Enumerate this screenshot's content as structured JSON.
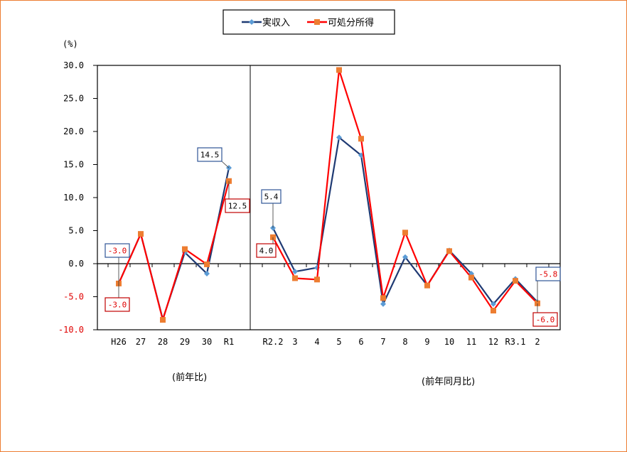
{
  "chart_data": {
    "type": "line",
    "title": "",
    "ylabel": "(%)",
    "xlabel": "",
    "ylim": [
      -10,
      30
    ],
    "yticks": [
      "30.0",
      "25.0",
      "20.0",
      "15.0",
      "10.0",
      "5.0",
      "0.0",
      "-5.0",
      "-10.0"
    ],
    "grid": false,
    "legend_position": "top",
    "sections": [
      {
        "label": "(前年比)",
        "categories": [
          "H26",
          "27",
          "28",
          "29",
          "30",
          "R1"
        ]
      },
      {
        "label": "(前年同月比)",
        "categories": [
          "R2.2",
          "3",
          "4",
          "5",
          "6",
          "7",
          "8",
          "9",
          "10",
          "11",
          "12",
          "R3.1",
          "2"
        ]
      }
    ],
    "categories": [
      "H26",
      "27",
      "28",
      "29",
      "30",
      "R1",
      "R2.2",
      "3",
      "4",
      "5",
      "6",
      "7",
      "8",
      "9",
      "10",
      "11",
      "12",
      "R3.1",
      "2"
    ],
    "series": [
      {
        "name": "実収入",
        "color": "#1F3A73",
        "marker": "diamond",
        "marker_color": "#5B9BD5",
        "values": [
          -3.0,
          4.5,
          -8.4,
          1.7,
          -1.5,
          14.5,
          5.4,
          -1.2,
          -0.6,
          19.1,
          16.4,
          -6.1,
          1.0,
          -3.3,
          2.0,
          -1.5,
          -6.1,
          -2.3,
          -5.8
        ]
      },
      {
        "name": "可処分所得",
        "color": "#FF0000",
        "marker": "square",
        "marker_color": "#ED7D31",
        "values": [
          -3.0,
          4.5,
          -8.5,
          2.2,
          -0.1,
          12.5,
          4.0,
          -2.2,
          -2.4,
          29.3,
          18.9,
          -5.2,
          4.7,
          -3.3,
          1.9,
          -2.1,
          -7.1,
          -2.6,
          -6.0
        ]
      }
    ],
    "annotations": [
      {
        "series": "実収入",
        "category": "H26",
        "text": "-3.0"
      },
      {
        "series": "可処分所得",
        "category": "H26",
        "text": "-3.0"
      },
      {
        "series": "実収入",
        "category": "R1",
        "text": "14.5"
      },
      {
        "series": "可処分所得",
        "category": "R1",
        "text": "12.5"
      },
      {
        "series": "実収入",
        "category": "R2.2",
        "text": "5.4"
      },
      {
        "series": "可処分所得",
        "category": "R2.2",
        "text": "4.0"
      },
      {
        "series": "実収入",
        "category": "2",
        "text": "-5.8"
      },
      {
        "series": "可処分所得",
        "category": "2",
        "text": "-6.0"
      }
    ]
  },
  "legend": {
    "items": [
      {
        "label": "実収入"
      },
      {
        "label": "可処分所得"
      }
    ]
  },
  "axis": {
    "unit": "(%)"
  },
  "section_labels": {
    "left": "(前年比)",
    "right": "(前年同月比)"
  }
}
